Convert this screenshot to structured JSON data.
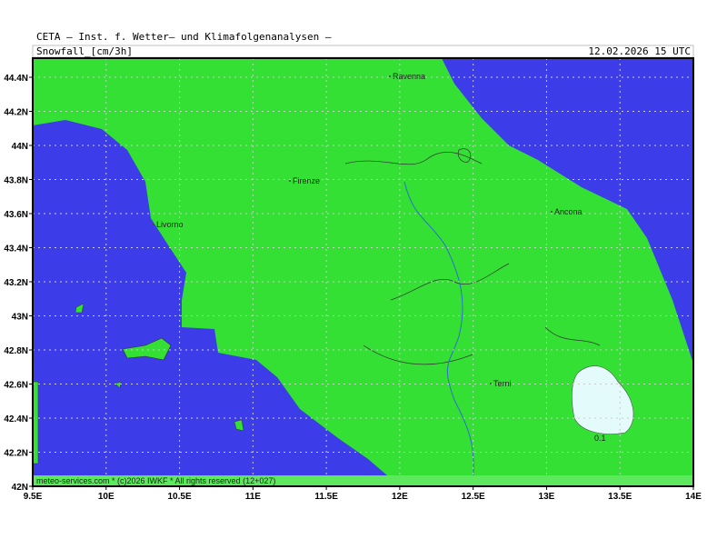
{
  "header": {
    "source": "CETA – Inst. f. Wetter– und Klimafolgenanalysen –",
    "variable": "Snowfall_[cm/3h]",
    "valid_time": "12.02.2026 15 UTC"
  },
  "map": {
    "lon_ticks": [
      {
        "value": 9.5,
        "label": "9.5E"
      },
      {
        "value": 10,
        "label": "10E"
      },
      {
        "value": 10.5,
        "label": "10.5E"
      },
      {
        "value": 11,
        "label": "11E"
      },
      {
        "value": 11.5,
        "label": "11.5E"
      },
      {
        "value": 12,
        "label": "12E"
      },
      {
        "value": 12.5,
        "label": "12.5E"
      },
      {
        "value": 13,
        "label": "13E"
      },
      {
        "value": 13.5,
        "label": "13.5E"
      },
      {
        "value": 14,
        "label": "14E"
      }
    ],
    "lat_ticks": [
      {
        "value": 42,
        "label": "42N"
      },
      {
        "value": 42.2,
        "label": "42.2N"
      },
      {
        "value": 42.4,
        "label": "42.4N"
      },
      {
        "value": 42.6,
        "label": "42.6N"
      },
      {
        "value": 42.8,
        "label": "42.8N"
      },
      {
        "value": 43,
        "label": "43N"
      },
      {
        "value": 43.2,
        "label": "43.2N"
      },
      {
        "value": 43.4,
        "label": "43.4N"
      },
      {
        "value": 43.6,
        "label": "43.6N"
      },
      {
        "value": 43.8,
        "label": "43.8N"
      },
      {
        "value": 44,
        "label": "44N"
      },
      {
        "value": 44.2,
        "label": "44.2N"
      },
      {
        "value": 44.4,
        "label": "44.4N"
      }
    ],
    "cities": [
      "Ravenna",
      "Firenze",
      "Livorno",
      "Ancona",
      "Terni"
    ],
    "contour_label": "0.1",
    "credit": "meteo-services.com * (c)2026 IWKF * All rights reserved (12+027)"
  }
}
